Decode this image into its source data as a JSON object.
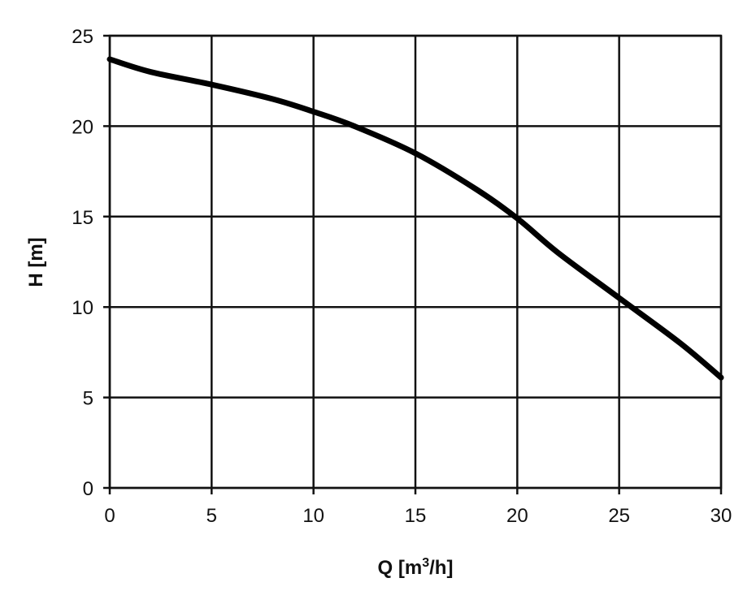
{
  "chart_data": {
    "type": "line",
    "xlabel_main": "Q [m",
    "xlabel_sup": "3",
    "xlabel_end": "/h]",
    "ylabel": "H [m]",
    "xlim": [
      0,
      30
    ],
    "ylim": [
      0,
      25
    ],
    "xticks": [
      0,
      5,
      10,
      15,
      20,
      25,
      30
    ],
    "yticks": [
      0,
      5,
      10,
      15,
      20,
      25
    ],
    "grid": true,
    "series": [
      {
        "x": [
          0,
          2,
          5,
          8,
          10,
          12,
          15,
          18,
          20,
          22,
          25,
          28,
          30
        ],
        "y": [
          23.7,
          23.0,
          22.3,
          21.5,
          20.8,
          20.0,
          18.5,
          16.5,
          14.9,
          13.0,
          10.5,
          8.0,
          6.1
        ]
      }
    ],
    "colors": {
      "line": "#000000",
      "grid": "#111111"
    }
  }
}
